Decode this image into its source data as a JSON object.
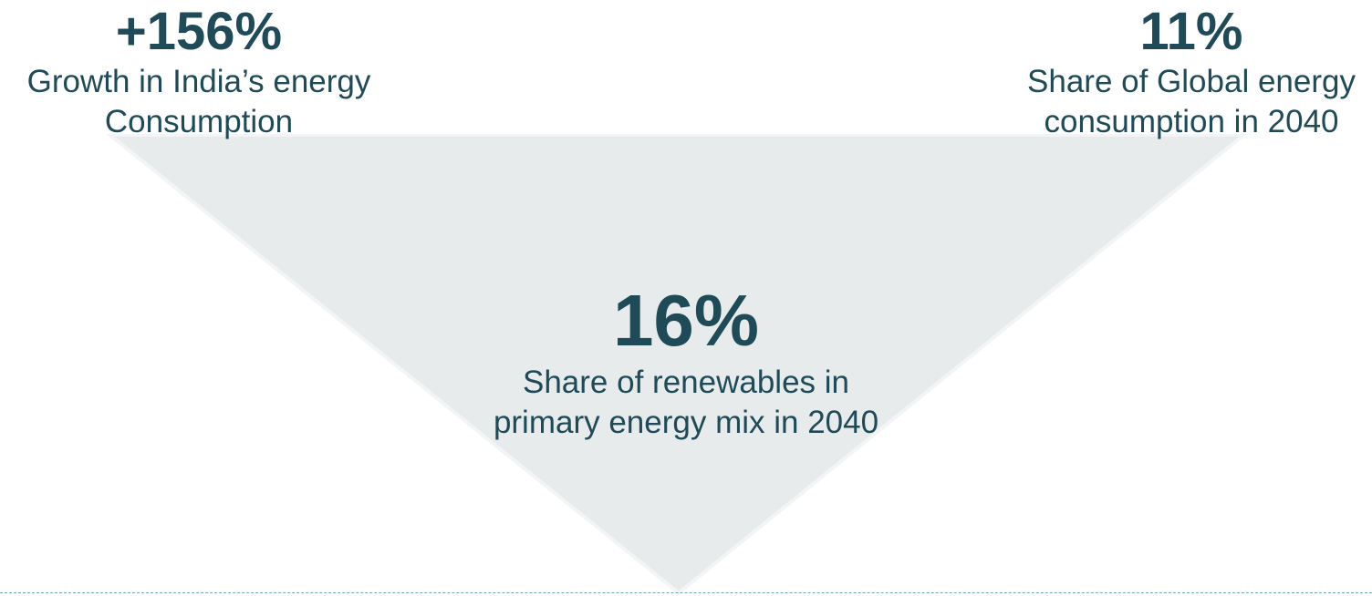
{
  "stats": {
    "left": {
      "value": "+156%",
      "description_line1": "Growth in India’s energy",
      "description_line2": "Consumption"
    },
    "right": {
      "value": "11%",
      "description_line1": "Share of Global energy",
      "description_line2": "consumption in 2040"
    },
    "center": {
      "value": "16%",
      "description_line1": "Share of renewables in",
      "description_line2": "primary energy mix in 2040"
    }
  },
  "colors": {
    "text": "#1f4a57",
    "triangle_fill": "#e7ebec",
    "triangle_edge": "#f2f4f5",
    "baseline": "#6fa7b4"
  }
}
